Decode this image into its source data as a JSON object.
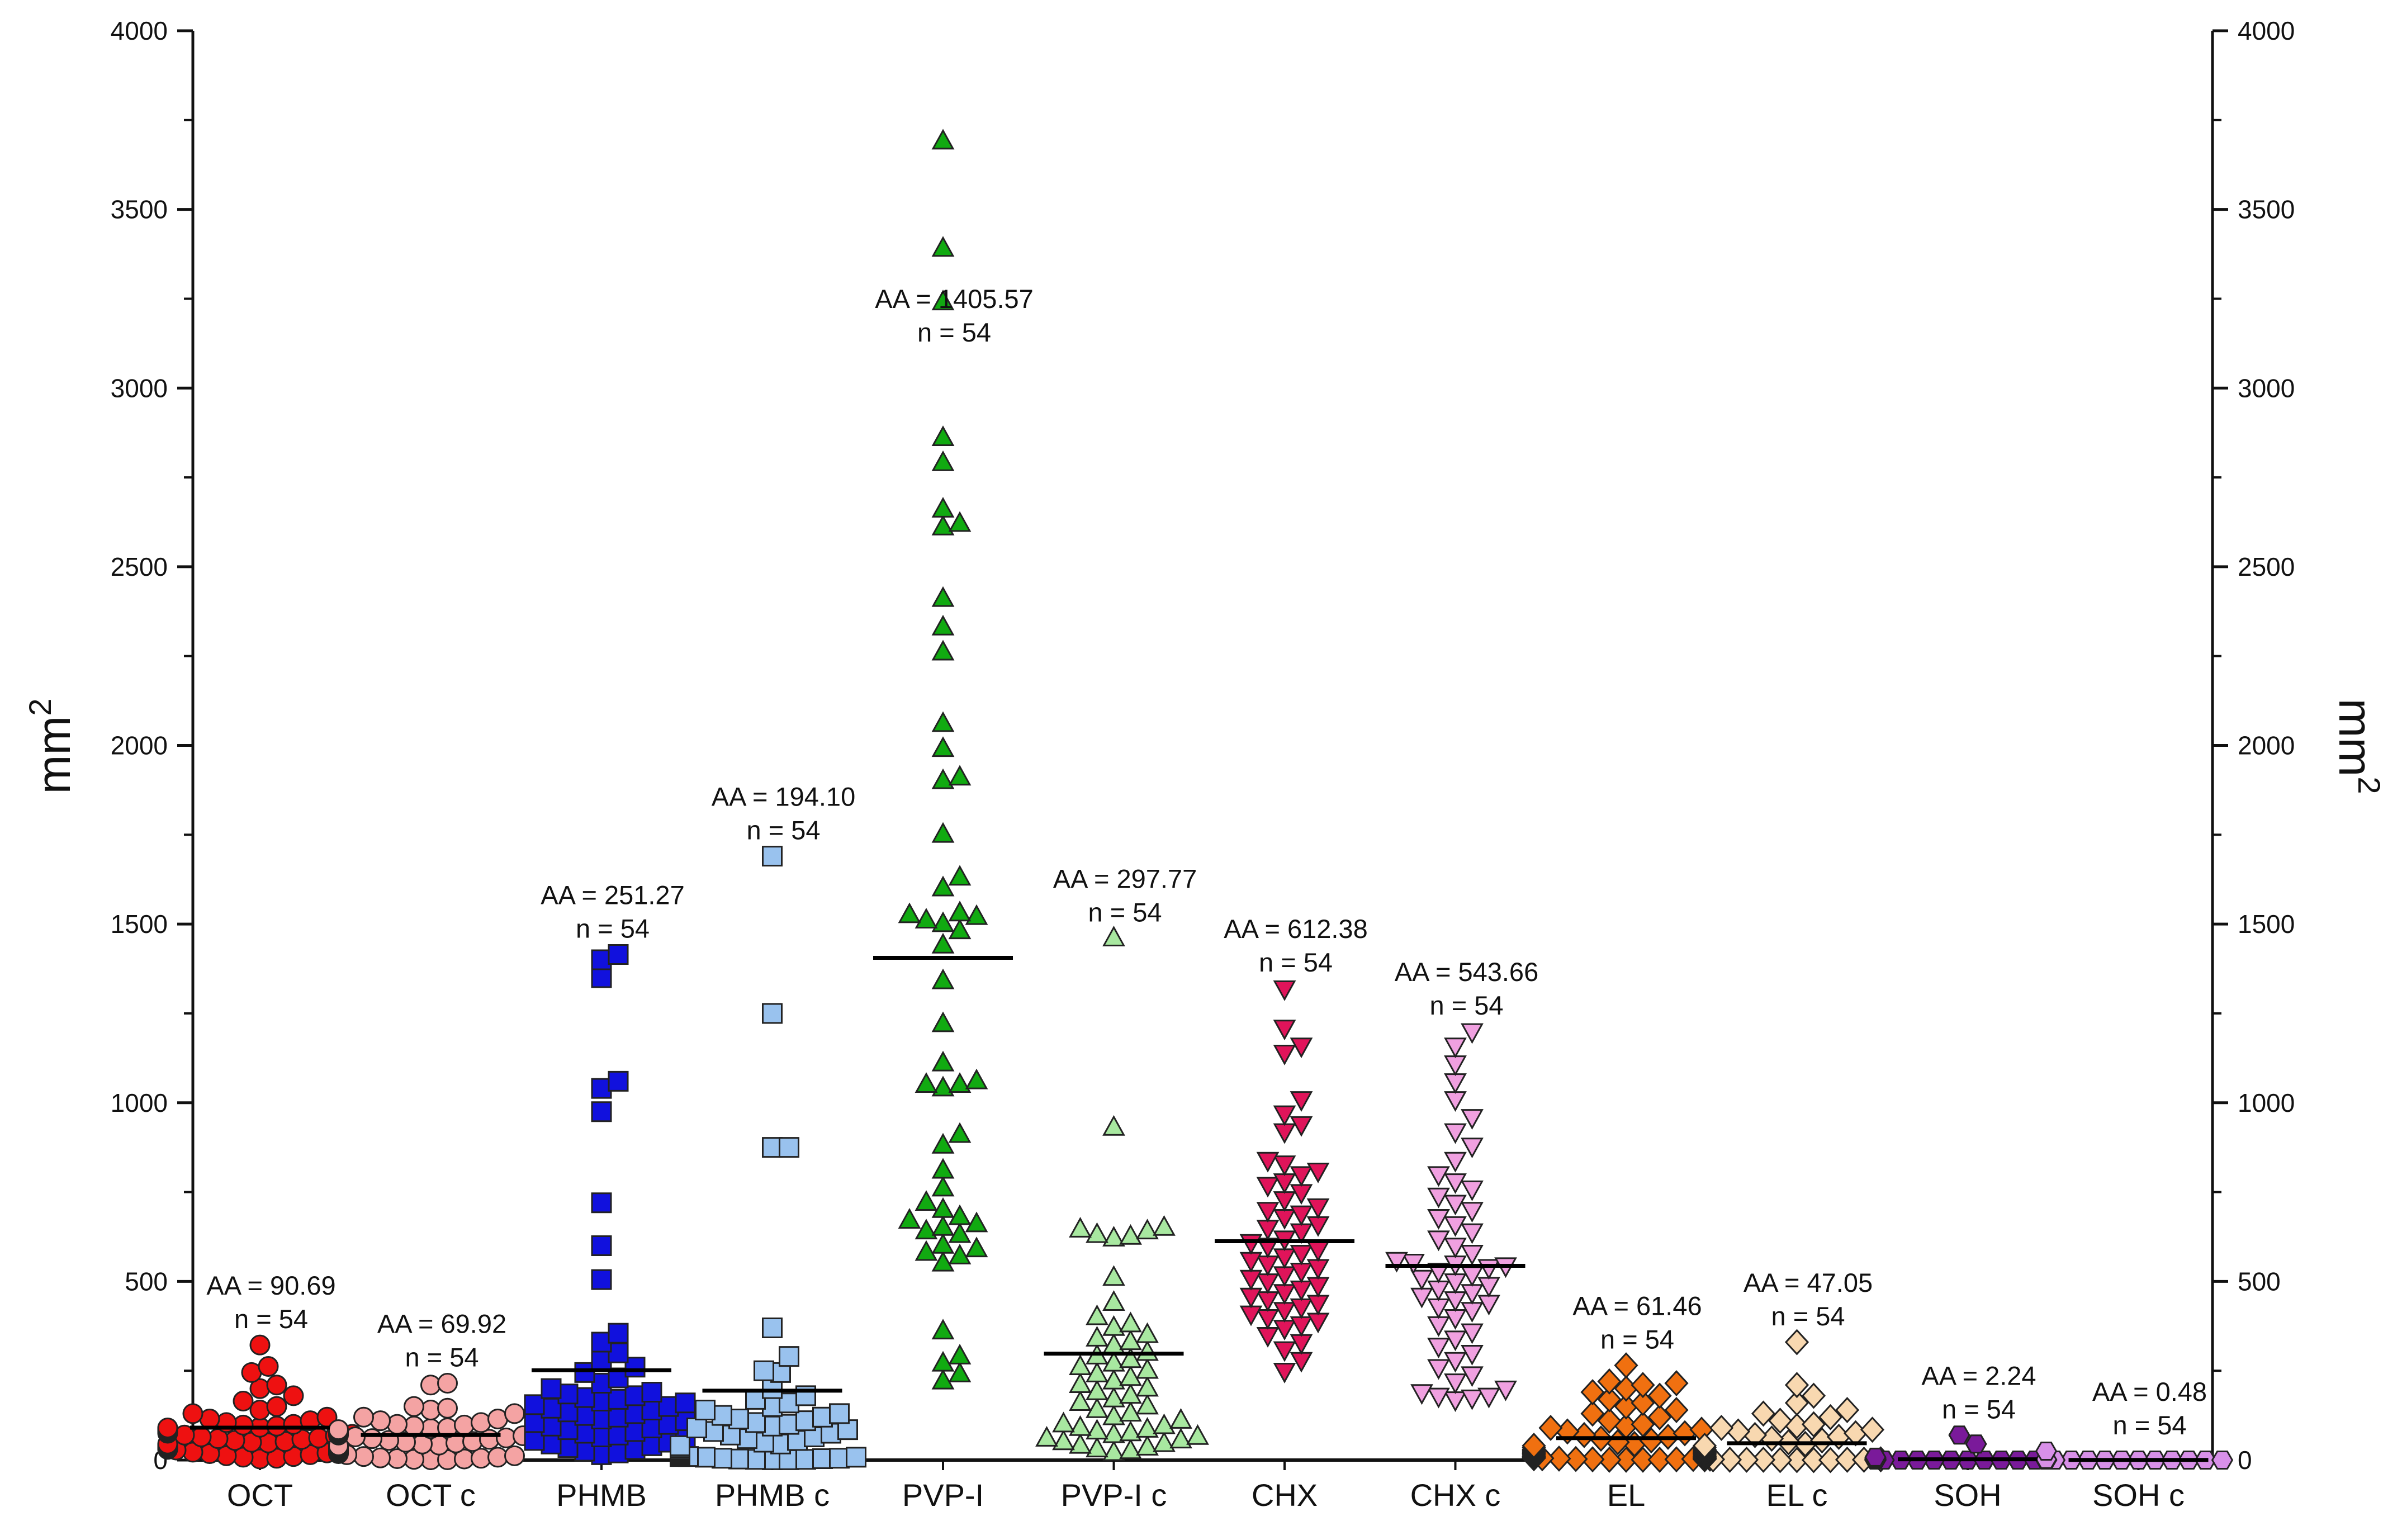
{
  "chart_data": {
    "type": "scatter",
    "subtype": "dot-plot with mean line",
    "title": "",
    "ylabel_left": "mm",
    "ylabel_right": "mm",
    "ylabel_superscript": "2",
    "ylim": [
      0,
      4000
    ],
    "yticks": [
      0,
      500,
      1000,
      1500,
      2000,
      2500,
      3000,
      3500,
      4000
    ],
    "categories": [
      "OCT",
      "OCT c",
      "PHMB",
      "PHMB c",
      "PVP-I",
      "PVP-I c",
      "CHX",
      "CHX c",
      "EL",
      "EL c",
      "SOH",
      "SOH c"
    ],
    "series": [
      {
        "name": "OCT",
        "marker": "circle",
        "color": "#ee1111",
        "mean": 90.69,
        "aa_label": "AA = 90.69",
        "n_label": "n = 54",
        "values": [
          322,
          262,
          245,
          210,
          200,
          180,
          165,
          150,
          140,
          130,
          120,
          115,
          110,
          105,
          100,
          98,
          95,
          92,
          90,
          88,
          85,
          82,
          80,
          78,
          75,
          72,
          70,
          68,
          65,
          62,
          60,
          58,
          55,
          52,
          50,
          48,
          45,
          42,
          40,
          38,
          35,
          32,
          30,
          28,
          25,
          22,
          20,
          18,
          15,
          12,
          10,
          8,
          5,
          3
        ]
      },
      {
        "name": "OCT c",
        "marker": "circle",
        "color": "#f4a3a3",
        "mean": 69.92,
        "aa_label": "AA = 69.92",
        "n_label": "n = 54",
        "values": [
          215,
          210,
          150,
          145,
          140,
          130,
          120,
          115,
          110,
          105,
          100,
          98,
          95,
          90,
          88,
          85,
          82,
          80,
          78,
          75,
          72,
          70,
          68,
          65,
          62,
          60,
          58,
          55,
          52,
          50,
          48,
          45,
          42,
          40,
          38,
          35,
          32,
          30,
          28,
          25,
          22,
          20,
          18,
          15,
          12,
          10,
          8,
          6,
          5,
          4,
          3,
          2,
          1,
          1
        ]
      },
      {
        "name": "PHMB",
        "marker": "square",
        "color": "#1111dd",
        "mean": 251.27,
        "aa_label": "AA = 251.27",
        "n_label": "n = 54",
        "values": [
          1415,
          1400,
          1350,
          1060,
          1040,
          975,
          720,
          600,
          505,
          355,
          330,
          300,
          280,
          260,
          245,
          230,
          215,
          200,
          190,
          185,
          180,
          175,
          170,
          165,
          160,
          155,
          150,
          145,
          140,
          135,
          130,
          125,
          120,
          115,
          110,
          105,
          100,
          95,
          90,
          85,
          80,
          75,
          70,
          65,
          60,
          55,
          50,
          45,
          40,
          35,
          30,
          25,
          20,
          15
        ]
      },
      {
        "name": "PHMB c",
        "marker": "square",
        "color": "#99c2ee",
        "mean": 194.1,
        "aa_label": "AA = 194.10",
        "n_label": "n = 54",
        "values": [
          1690,
          1250,
          875,
          875,
          370,
          290,
          250,
          245,
          200,
          180,
          170,
          160,
          150,
          140,
          130,
          125,
          120,
          115,
          110,
          105,
          100,
          95,
          90,
          85,
          80,
          75,
          70,
          65,
          60,
          55,
          50,
          45,
          40,
          35,
          30,
          28,
          25,
          22,
          20,
          18,
          15,
          12,
          10,
          10,
          8,
          8,
          5,
          5,
          4,
          3,
          2,
          2,
          1,
          1
        ]
      },
      {
        "name": "PVP-I",
        "marker": "triangle-up",
        "color": "#11aa11",
        "mean": 1405.57,
        "aa_label": "AA = 1405.57",
        "n_label": "n = 54",
        "values": [
          3690,
          3390,
          3240,
          2860,
          2790,
          2660,
          2620,
          2610,
          2410,
          2330,
          2260,
          2060,
          1990,
          1910,
          1900,
          1750,
          1630,
          1600,
          1530,
          1525,
          1520,
          1510,
          1500,
          1480,
          1440,
          1340,
          1220,
          1110,
          1060,
          1050,
          1050,
          1040,
          910,
          880,
          810,
          760,
          720,
          700,
          680,
          670,
          660,
          650,
          640,
          630,
          600,
          590,
          580,
          570,
          550,
          360,
          290,
          270,
          240,
          220
        ]
      },
      {
        "name": "PVP-I c",
        "marker": "triangle-up",
        "color": "#a8e8a0",
        "mean": 297.77,
        "aa_label": "AA = 297.77",
        "n_label": "n = 54",
        "values": [
          1460,
          930,
          650,
          645,
          640,
          630,
          625,
          620,
          510,
          440,
          400,
          380,
          370,
          350,
          340,
          330,
          320,
          300,
          290,
          280,
          270,
          260,
          250,
          240,
          230,
          220,
          210,
          200,
          190,
          180,
          170,
          160,
          150,
          140,
          130,
          120,
          110,
          100,
          95,
          90,
          85,
          80,
          75,
          70,
          65,
          60,
          55,
          50,
          45,
          40,
          35,
          30,
          25,
          20
        ]
      },
      {
        "name": "CHX",
        "marker": "triangle-down",
        "color": "#e0145a",
        "mean": 612.38,
        "aa_label": "AA = 612.38",
        "n_label": "n = 54",
        "values": [
          1320,
          1210,
          1160,
          1140,
          1010,
          970,
          940,
          920,
          840,
          830,
          810,
          800,
          780,
          770,
          750,
          730,
          710,
          700,
          690,
          680,
          660,
          650,
          640,
          620,
          610,
          600,
          590,
          580,
          570,
          560,
          550,
          540,
          530,
          520,
          510,
          500,
          490,
          480,
          470,
          460,
          450,
          440,
          430,
          420,
          410,
          400,
          390,
          380,
          370,
          350,
          330,
          310,
          280,
          250
        ]
      },
      {
        "name": "CHX c",
        "marker": "triangle-down",
        "color": "#f0a0e0",
        "mean": 543.66,
        "aa_label": "AA = 543.66",
        "n_label": "n = 54",
        "values": [
          1200,
          1160,
          1110,
          1060,
          1010,
          960,
          920,
          880,
          840,
          800,
          780,
          760,
          740,
          720,
          700,
          680,
          660,
          640,
          620,
          600,
          580,
          560,
          555,
          550,
          545,
          540,
          530,
          520,
          510,
          500,
          490,
          480,
          470,
          460,
          450,
          440,
          430,
          420,
          400,
          380,
          360,
          340,
          320,
          300,
          280,
          260,
          240,
          220,
          200,
          190,
          180,
          180,
          175,
          170
        ]
      },
      {
        "name": "EL",
        "marker": "diamond",
        "color": "#f07010",
        "mean": 61.46,
        "aa_label": "AA = 61.46",
        "n_label": "n = 54",
        "values": [
          265,
          220,
          215,
          210,
          200,
          190,
          180,
          170,
          160,
          150,
          140,
          130,
          120,
          110,
          100,
          95,
          90,
          85,
          80,
          75,
          70,
          65,
          60,
          55,
          50,
          45,
          40,
          35,
          30,
          28,
          25,
          22,
          20,
          18,
          15,
          12,
          10,
          10,
          8,
          8,
          6,
          6,
          5,
          5,
          4,
          4,
          3,
          3,
          2,
          2,
          1,
          1,
          1,
          1
        ]
      },
      {
        "name": "EL c",
        "marker": "diamond",
        "color": "#f8d8b0",
        "mean": 47.05,
        "aa_label": "AA = 47.05",
        "n_label": "n = 54",
        "values": [
          330,
          210,
          180,
          160,
          140,
          130,
          120,
          110,
          100,
          95,
          90,
          85,
          80,
          75,
          70,
          65,
          60,
          55,
          50,
          45,
          40,
          35,
          30,
          28,
          25,
          22,
          20,
          18,
          15,
          12,
          10,
          10,
          8,
          8,
          6,
          6,
          5,
          5,
          4,
          4,
          3,
          3,
          2,
          2,
          2,
          1,
          1,
          1,
          1,
          1,
          0,
          0,
          0,
          0
        ]
      },
      {
        "name": "SOH",
        "marker": "hexagon",
        "color": "#7a1a9a",
        "mean": 2.24,
        "aa_label": "AA = 2.24",
        "n_label": "n = 54",
        "values": [
          70,
          45,
          8,
          6,
          5,
          4,
          3,
          3,
          2,
          2,
          2,
          1,
          1,
          1,
          1,
          1,
          1,
          1,
          1,
          1,
          0,
          0,
          0,
          0,
          0,
          0,
          0,
          0,
          0,
          0,
          0,
          0,
          0,
          0,
          0,
          0,
          0,
          0,
          0,
          0,
          0,
          0,
          0,
          0,
          0,
          0,
          0,
          0,
          0,
          0,
          0,
          0,
          0,
          0
        ]
      },
      {
        "name": "SOH c",
        "marker": "hexagon",
        "color": "#d890e8",
        "mean": 0.48,
        "aa_label": "AA = 0.48",
        "n_label": "n = 54",
        "values": [
          25,
          2,
          1,
          1,
          1,
          0,
          0,
          0,
          0,
          0,
          0,
          0,
          0,
          0,
          0,
          0,
          0,
          0,
          0,
          0,
          0,
          0,
          0,
          0,
          0,
          0,
          0,
          0,
          0,
          0,
          0,
          0,
          0,
          0,
          0,
          0,
          0,
          0,
          0,
          0,
          0,
          0,
          0,
          0,
          0,
          0,
          0,
          0,
          0,
          0,
          0,
          0,
          0,
          0
        ]
      }
    ]
  }
}
